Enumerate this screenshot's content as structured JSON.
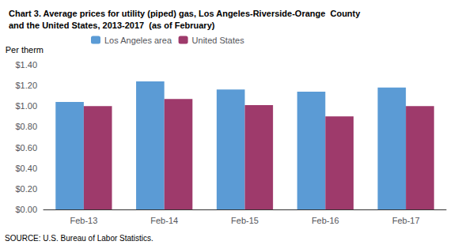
{
  "chart_data": {
    "type": "bar",
    "title": "Chart 3. Average prices for utility (piped) gas, Los Angeles-Riverside-Orange  County\nand the United States, 2013-2017  (as of February)",
    "ylabel": "Per therm",
    "annotations": [
      "SOURCE: U.S. Bureau of Labor Statistics."
    ],
    "categories": [
      "Feb-13",
      "Feb-14",
      "Feb-15",
      "Feb-16",
      "Feb-17"
    ],
    "series": [
      {
        "name": "Los Angeles area",
        "color": "#5B9BD5",
        "values": [
          1.04,
          1.24,
          1.16,
          1.14,
          1.18
        ]
      },
      {
        "name": "United States",
        "color": "#9E3A6B",
        "values": [
          1.0,
          1.07,
          1.01,
          0.9,
          1.0
        ]
      }
    ],
    "ylim": [
      0.0,
      1.4
    ],
    "yticks": [
      {
        "value": 0.0,
        "label": "$0.00"
      },
      {
        "value": 0.2,
        "label": "$0.20"
      },
      {
        "value": 0.4,
        "label": "$0.40"
      },
      {
        "value": 0.6,
        "label": "$0.60"
      },
      {
        "value": 0.8,
        "label": "$0.80"
      },
      {
        "value": 1.0,
        "label": "$1.00"
      },
      {
        "value": 1.2,
        "label": "$1.20"
      },
      {
        "value": 1.4,
        "label": "$1.40"
      }
    ],
    "grid": false,
    "legend": "upper left"
  }
}
